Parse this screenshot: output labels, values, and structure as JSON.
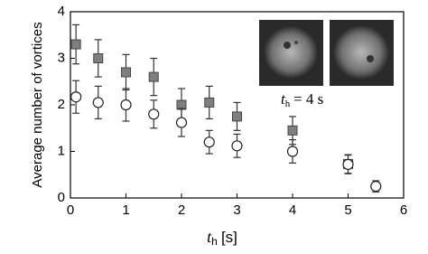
{
  "chart_data": {
    "type": "scatter",
    "ylabel": "Average number of vortices",
    "xlabel": {
      "base": "t",
      "sub": "h",
      "rest": "[s]"
    },
    "inset_caption": {
      "base": "t",
      "sub": "h",
      "rest": "= 4 s"
    },
    "xlim": [
      0,
      6
    ],
    "xticks": [
      0,
      1,
      2,
      3,
      4,
      5,
      6
    ],
    "ylim": [
      0,
      4
    ],
    "yticks": [
      0,
      1,
      2,
      3,
      4
    ],
    "series": [
      {
        "marker": "square",
        "color": "#7f7f7f",
        "x": [
          0.1,
          0.5,
          1,
          1.5,
          2,
          2.5,
          3,
          4,
          5
        ],
        "values": [
          3.3,
          3.0,
          2.7,
          2.6,
          2.0,
          2.05,
          1.75,
          1.45,
          0.73
        ],
        "errors": [
          0.42,
          0.4,
          0.38,
          0.4,
          0.35,
          0.35,
          0.3,
          0.3,
          0.2
        ]
      },
      {
        "marker": "circle",
        "color": "#ffffff",
        "x": [
          0.1,
          0.5,
          1,
          1.5,
          2,
          2.5,
          3,
          4,
          5,
          5.5
        ],
        "values": [
          2.17,
          2.05,
          2.0,
          1.8,
          1.62,
          1.2,
          1.12,
          1.0,
          0.72,
          0.25
        ],
        "errors": [
          0.35,
          0.35,
          0.35,
          0.3,
          0.3,
          0.25,
          0.25,
          0.25,
          0.2,
          0.12
        ]
      }
    ]
  }
}
